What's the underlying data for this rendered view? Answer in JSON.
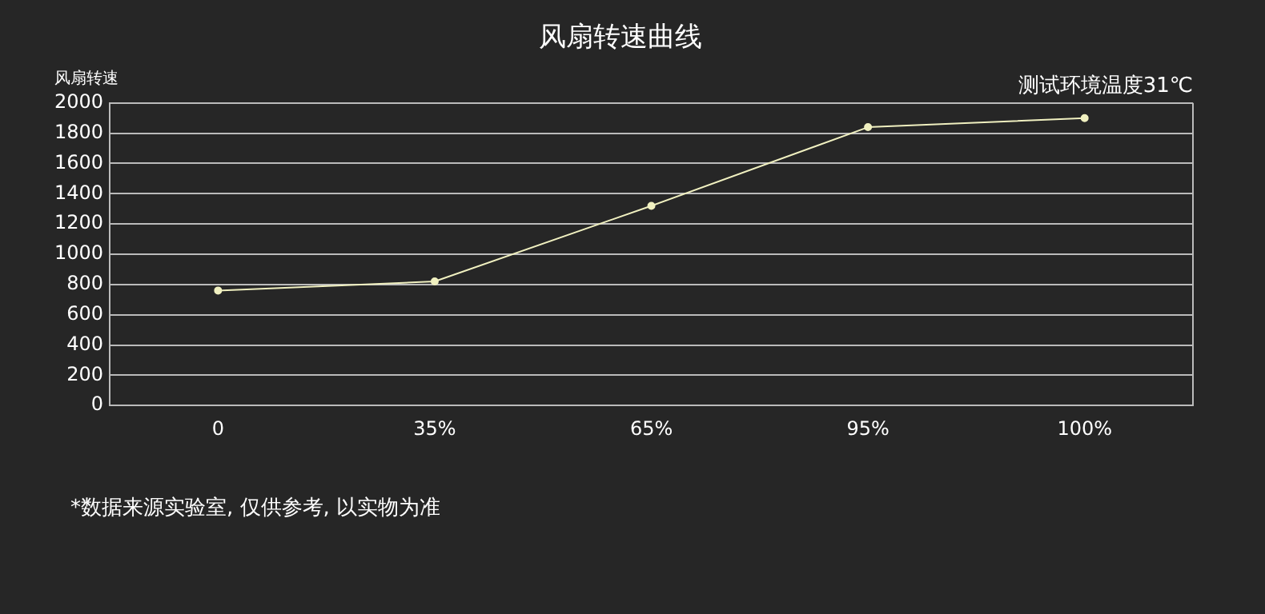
{
  "chart_data": {
    "type": "line",
    "title": "风扇转速曲线",
    "ylabel": "风扇转速",
    "annotations": [
      "测试环境温度31℃",
      "*数据来源实验室, 仅供参考, 以实物为准"
    ],
    "categories": [
      "0",
      "35%",
      "65%",
      "95%",
      "100%"
    ],
    "series": [
      {
        "color": "#f0f0c0",
        "values": [
          760,
          820,
          1320,
          1840,
          1900
        ]
      }
    ],
    "ylim": [
      0,
      2000
    ],
    "yticks": [
      0,
      200,
      400,
      600,
      800,
      1000,
      1200,
      1400,
      1600,
      1800,
      2000
    ],
    "grid": "y",
    "marker": "circle",
    "line_style": "solid",
    "legend": false
  }
}
